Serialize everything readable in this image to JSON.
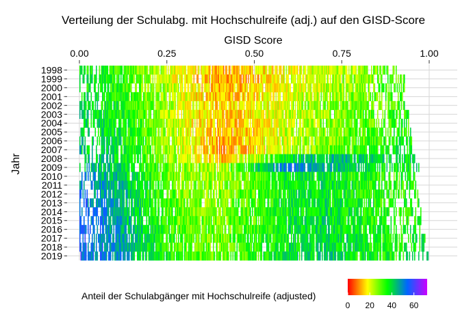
{
  "chart_data": {
    "type": "heatmap",
    "title": "Verteilung der Schulabg. mit Hochschulreife (adj.) auf den GISD-Score",
    "xlabel": "GISD Score",
    "ylabel": "Jahr",
    "xlim": [
      0,
      1
    ],
    "x_ticks": [
      {
        "value": 0.0,
        "label": "0.00"
      },
      {
        "value": 0.25,
        "label": "0.25"
      },
      {
        "value": 0.5,
        "label": "0.50"
      },
      {
        "value": 0.75,
        "label": "0.75"
      },
      {
        "value": 1.0,
        "label": "1.00"
      }
    ],
    "x_axis_position": "top",
    "years": [
      "1998",
      "1999",
      "2000",
      "2001",
      "2002",
      "2003",
      "2004",
      "2005",
      "2006",
      "2007",
      "2008",
      "2009",
      "2010",
      "2011",
      "2012",
      "2013",
      "2014",
      "2015",
      "2016",
      "2017",
      "2018",
      "2019"
    ],
    "profile_note_values": {
      "gisd_points": [
        0.0,
        0.1,
        0.2,
        0.3,
        0.4,
        0.5,
        0.6,
        0.7,
        0.8,
        0.9,
        1.0
      ]
    },
    "rows": [
      {
        "year": "1998",
        "range": [
          0.0,
          0.92
        ],
        "values": [
          36,
          34,
          26,
          18,
          12,
          15,
          20,
          22,
          26,
          30,
          34
        ]
      },
      {
        "year": "1999",
        "range": [
          0.0,
          0.93
        ],
        "values": [
          37,
          34,
          26,
          18,
          12,
          14,
          19,
          22,
          26,
          30,
          34
        ]
      },
      {
        "year": "2000",
        "range": [
          0.0,
          0.93
        ],
        "values": [
          38,
          35,
          27,
          19,
          13,
          15,
          20,
          23,
          27,
          31,
          35
        ]
      },
      {
        "year": "2001",
        "range": [
          0.0,
          0.93
        ],
        "values": [
          40,
          36,
          28,
          19,
          14,
          16,
          21,
          24,
          28,
          32,
          35
        ]
      },
      {
        "year": "2002",
        "range": [
          0.0,
          0.94
        ],
        "values": [
          40,
          37,
          28,
          20,
          14,
          17,
          22,
          25,
          28,
          32,
          36
        ]
      },
      {
        "year": "2003",
        "range": [
          0.0,
          0.94
        ],
        "values": [
          41,
          37,
          29,
          20,
          14,
          17,
          22,
          25,
          29,
          33,
          36
        ]
      },
      {
        "year": "2004",
        "range": [
          0.0,
          0.94
        ],
        "values": [
          41,
          38,
          29,
          20,
          13,
          17,
          22,
          25,
          29,
          33,
          36
        ]
      },
      {
        "year": "2005",
        "range": [
          0.0,
          0.95
        ],
        "values": [
          42,
          38,
          29,
          20,
          13,
          17,
          23,
          26,
          30,
          34,
          37
        ]
      },
      {
        "year": "2006",
        "range": [
          0.0,
          0.95
        ],
        "values": [
          42,
          38,
          30,
          20,
          12,
          16,
          23,
          27,
          31,
          35,
          38
        ]
      },
      {
        "year": "2007",
        "range": [
          0.0,
          0.95
        ],
        "values": [
          43,
          39,
          30,
          20,
          12,
          16,
          24,
          28,
          32,
          36,
          38
        ]
      },
      {
        "year": "2008",
        "range": [
          0.0,
          0.96
        ],
        "values": [
          45,
          40,
          32,
          22,
          14,
          24,
          40,
          44,
          42,
          38,
          40
        ]
      },
      {
        "year": "2009",
        "range": [
          0.0,
          0.97
        ],
        "values": [
          46,
          42,
          34,
          26,
          22,
          40,
          52,
          46,
          40,
          36,
          40
        ]
      },
      {
        "year": "2010",
        "range": [
          0.0,
          0.96
        ],
        "values": [
          50,
          44,
          34,
          26,
          24,
          30,
          36,
          38,
          34,
          32,
          36
        ]
      },
      {
        "year": "2011",
        "range": [
          0.0,
          0.96
        ],
        "values": [
          51,
          45,
          35,
          27,
          25,
          31,
          37,
          39,
          35,
          32,
          36
        ]
      },
      {
        "year": "2012",
        "range": [
          0.0,
          0.97
        ],
        "values": [
          52,
          46,
          36,
          28,
          26,
          31,
          37,
          39,
          35,
          33,
          37
        ]
      },
      {
        "year": "2013",
        "range": [
          0.0,
          0.97
        ],
        "values": [
          53,
          46,
          36,
          28,
          26,
          32,
          37,
          39,
          36,
          33,
          37
        ]
      },
      {
        "year": "2014",
        "range": [
          0.0,
          0.98
        ],
        "values": [
          54,
          47,
          37,
          29,
          27,
          32,
          37,
          39,
          36,
          34,
          37
        ]
      },
      {
        "year": "2015",
        "range": [
          0.0,
          0.98
        ],
        "values": [
          55,
          48,
          37,
          29,
          27,
          32,
          38,
          40,
          36,
          34,
          38
        ]
      },
      {
        "year": "2016",
        "range": [
          0.0,
          0.98
        ],
        "values": [
          55,
          48,
          38,
          30,
          28,
          33,
          38,
          40,
          37,
          34,
          38
        ]
      },
      {
        "year": "2017",
        "range": [
          0.0,
          0.99
        ],
        "values": [
          55,
          49,
          38,
          30,
          28,
          33,
          38,
          40,
          37,
          35,
          38
        ]
      },
      {
        "year": "2018",
        "range": [
          0.0,
          0.99
        ],
        "values": [
          56,
          49,
          38,
          30,
          28,
          33,
          38,
          40,
          37,
          35,
          38
        ]
      },
      {
        "year": "2019",
        "range": [
          0.0,
          1.0
        ],
        "values": [
          56,
          49,
          39,
          31,
          29,
          34,
          39,
          41,
          38,
          35,
          39
        ]
      }
    ],
    "legend": {
      "title": "Anteil der Schulabgänger mit Hochschulreife (adjusted)",
      "placement": "bottom",
      "ticks": [
        "0",
        "20",
        "40",
        "60"
      ],
      "tick_values": [
        0,
        20,
        40,
        60
      ],
      "range": [
        0,
        72
      ],
      "colors": [
        "#ff0000",
        "#ffff00",
        "#00ff00",
        "#0066ff",
        "#cc00ff"
      ]
    },
    "grid": true
  }
}
